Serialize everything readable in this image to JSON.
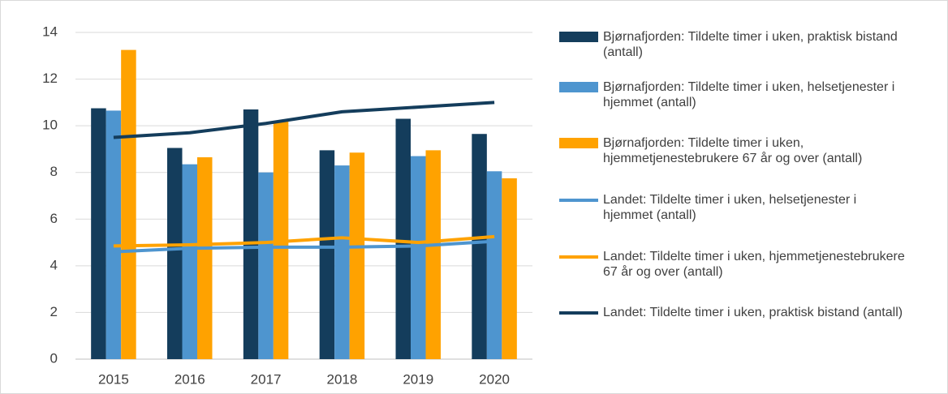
{
  "chart_data": {
    "type": "bar",
    "categories": [
      "2015",
      "2016",
      "2017",
      "2018",
      "2019",
      "2020"
    ],
    "ylim": [
      0,
      14
    ],
    "yticks": [
      0,
      2,
      4,
      6,
      8,
      10,
      12,
      14
    ],
    "grid": true,
    "legend": "right",
    "series": [
      {
        "name": "Bjørnafjorden: Tildelte timer i uken, praktisk bistand (antall)",
        "type": "bar",
        "color": "#143d5c",
        "values": [
          10.75,
          9.05,
          10.7,
          8.95,
          10.3,
          9.65
        ]
      },
      {
        "name": "Bjørnafjorden: Tildelte timer i uken, helsetjenester i hjemmet (antall)",
        "type": "bar",
        "color": "#4e95cf",
        "values": [
          10.65,
          8.35,
          8.0,
          8.3,
          8.7,
          8.05
        ]
      },
      {
        "name": "Bjørnafjorden: Tildelte timer i uken, hjemmetjenestebrukere 67 år og over (antall)",
        "type": "bar",
        "color": "#ffa200",
        "values": [
          13.25,
          8.65,
          10.2,
          8.85,
          8.95,
          7.75
        ]
      },
      {
        "name": "Landet: Tildelte timer i uken, helsetjenester i hjemmet (antall)",
        "type": "line",
        "color": "#4e95cf",
        "values": [
          4.6,
          4.75,
          4.8,
          4.8,
          4.85,
          5.05
        ]
      },
      {
        "name": "Landet: Tildelte timer i uken, hjemmetjenestebrukere 67 år og over (antall)",
        "type": "line",
        "color": "#ffa200",
        "values": [
          4.85,
          4.9,
          5.0,
          5.2,
          5.0,
          5.25
        ]
      },
      {
        "name": "Landet: Tildelte timer i uken, praktisk bistand (antall)",
        "type": "line",
        "color": "#143d5c",
        "values": [
          9.5,
          9.7,
          10.1,
          10.6,
          10.8,
          11.0
        ]
      }
    ]
  }
}
